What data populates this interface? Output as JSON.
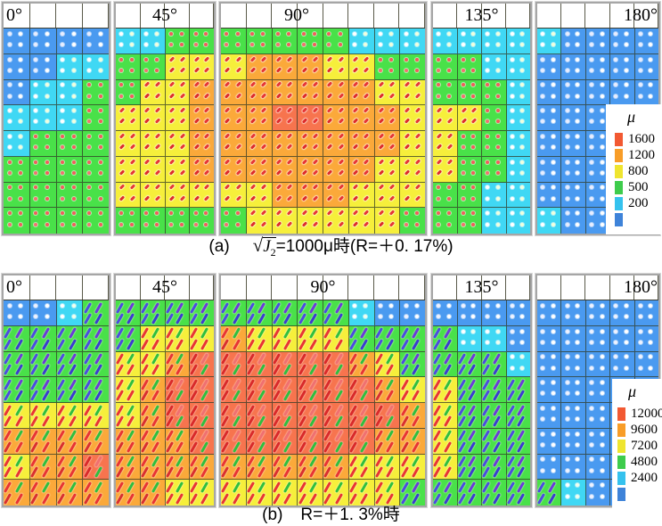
{
  "palette": {
    "B": "#4A9AF0",
    "C": "#40D8F4",
    "G": "#49E149",
    "Y": "#F6EF3B",
    "O": "#FBA93A",
    "R": "#F7744E"
  },
  "legend_swatch_colors": [
    "#F25932",
    "#F89D28",
    "#EFE52F",
    "#3ECC4C",
    "#35C2EE",
    "#3E83D9"
  ],
  "chart_data": [
    {
      "id": "a",
      "type": "heatmap",
      "unit": "μ",
      "caption": {
        "index": "(a)",
        "radical": "√",
        "radicand": "J",
        "radicand_sub": "2",
        "suffix": "=1000μ時(R=＋0. 17%)"
      },
      "legend": {
        "title": "μ",
        "values": [
          "1600",
          "1200",
          "800",
          "500",
          "200",
          ""
        ]
      },
      "value_levels": {
        "R": "over 1600",
        "O": "1200-1600",
        "Y": "800-1200",
        "G": "500-800",
        "C": "200-500",
        "B": "under 200"
      },
      "panels": [
        {
          "angle": "0°",
          "cols": 4,
          "label_align": "left",
          "grid": [
            "BBBB",
            "BBCC",
            "BCCG",
            "CCCG",
            "CGGG",
            "GGGG",
            "GGGG",
            "GGGG"
          ]
        },
        {
          "angle": "45°",
          "cols": 4,
          "label_align": "center",
          "grid": [
            "CCGG",
            "GGYY",
            "GYYO",
            "YYYO",
            "YYYO",
            "YYYO",
            "YYYY",
            "GGGG"
          ]
        },
        {
          "angle": "90°",
          "cols": 8,
          "label_align": "center-left",
          "grid": [
            "GGGGGCCC",
            "YOOOYYGG",
            "OOOOOOYY",
            "OORROOOY",
            "OOOOOOOY",
            "OOOOOOYY",
            "YYOOOYYY",
            "GYYYYYYG"
          ]
        },
        {
          "angle": "135°",
          "cols": 4,
          "label_align": "center",
          "grid": [
            "CCCC",
            "GGCC",
            "GGGC",
            "YYGC",
            "YGGC",
            "YGGC",
            "GGCC",
            "GGCC"
          ]
        },
        {
          "angle": "180°",
          "cols": 5,
          "label_align": "right",
          "grid": [
            "CBBBB",
            "BBBBB",
            "BBBBB",
            "BBBBB",
            "BBBBB",
            "BBBBB",
            "BBBBB",
            "CBBBB"
          ]
        }
      ]
    },
    {
      "id": "b",
      "type": "heatmap",
      "unit": "μ",
      "caption": {
        "index": "(b)",
        "text": "R=＋1. 3%時"
      },
      "legend": {
        "title": "μ",
        "values": [
          "12000",
          "9600",
          "7200",
          "4800",
          "2400",
          ""
        ]
      },
      "value_levels": {
        "R": "over 12000",
        "O": "9600-12000",
        "Y": "7200-9600",
        "G": "4800-7200",
        "C": "2400-4800",
        "B": "under 2400"
      },
      "panels": [
        {
          "angle": "0°",
          "cols": 4,
          "label_align": "left",
          "grid": [
            "BBCG",
            "GGGG",
            "GGGG",
            "GGGG",
            "YYYY",
            "OOOO",
            "YOOR",
            "OOOO"
          ]
        },
        {
          "angle": "45°",
          "cols": 4,
          "label_align": "center",
          "grid": [
            "GGGG",
            "GYYY",
            "YYOR",
            "YORR",
            "YORR",
            "OOOR",
            "OOOO",
            "OOYY"
          ]
        },
        {
          "angle": "90°",
          "cols": 8,
          "label_align": "center",
          "grid": [
            "GGGGGCBB",
            "OYYYYGGG",
            "RRRRROYG",
            "RRRRRROY",
            "RRRRRRRO",
            "RRRRRROO",
            "OOOOOYYY",
            "YYYYYYYG"
          ]
        },
        {
          "angle": "135°",
          "cols": 4,
          "label_align": "center",
          "grid": [
            "BBBB",
            "GCCB",
            "GGGC",
            "YGGG",
            "YGGG",
            "YGGG",
            "YGGG",
            "GGGG"
          ]
        },
        {
          "angle": "180°",
          "cols": 5,
          "label_align": "right",
          "grid": [
            "BBBBB",
            "BBBBB",
            "BBBBB",
            "BBBBB",
            "BBBBB",
            "BBBBB",
            "BBBBB",
            "GCBBB"
          ]
        }
      ]
    }
  ]
}
